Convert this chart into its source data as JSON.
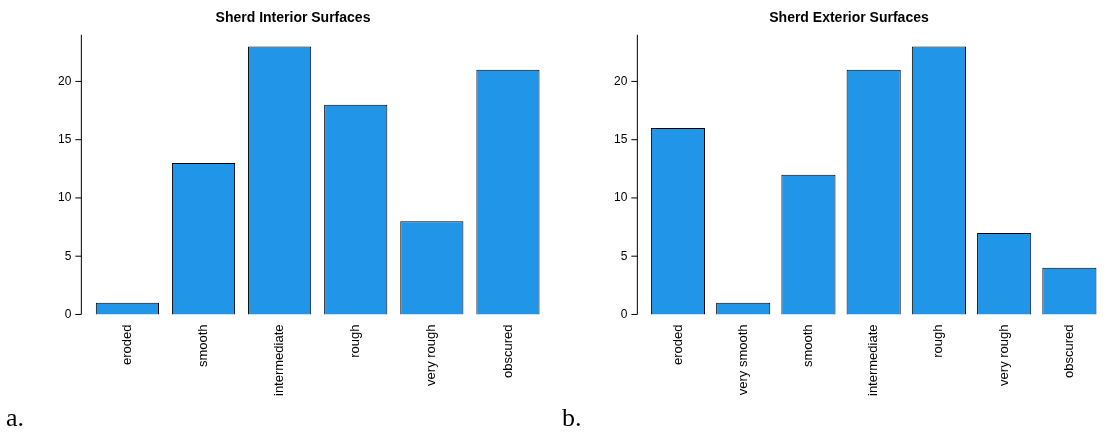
{
  "chart_data": [
    {
      "type": "bar",
      "title": "Sherd Interior Surfaces",
      "categories": [
        "eroded",
        "smooth",
        "intermediate",
        "rough",
        "very rough",
        "obscured"
      ],
      "values": [
        1,
        13,
        23,
        18,
        8,
        21
      ],
      "color": "#2196e8",
      "ylim": [
        0,
        24
      ],
      "yticks": [
        0,
        5,
        10,
        15,
        20
      ],
      "grid": false,
      "legend": false,
      "annotations": [
        "a."
      ]
    },
    {
      "type": "bar",
      "title": "Sherd Exterior Surfaces",
      "categories": [
        "eroded",
        "very smooth",
        "smooth",
        "intermediate",
        "rough",
        "very rough",
        "obscured"
      ],
      "values": [
        16,
        1,
        12,
        21,
        23,
        7,
        4
      ],
      "color": "#2196e8",
      "ylim": [
        0,
        24
      ],
      "yticks": [
        0,
        5,
        10,
        15,
        20
      ],
      "grid": false,
      "legend": false,
      "annotations": [
        "b."
      ]
    }
  ]
}
